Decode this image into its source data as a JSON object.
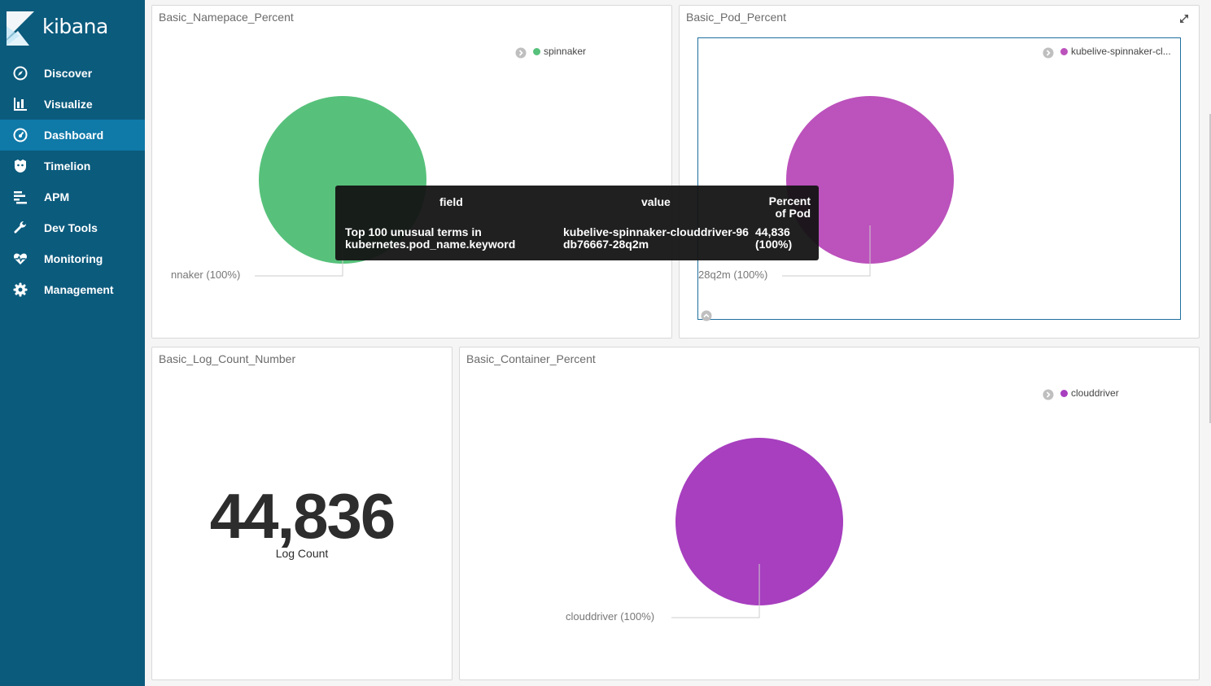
{
  "app": {
    "name": "kibana"
  },
  "nav": [
    {
      "label": "Discover",
      "icon": "compass-icon"
    },
    {
      "label": "Visualize",
      "icon": "bar-chart-icon"
    },
    {
      "label": "Dashboard",
      "icon": "dashboard-icon",
      "active": true
    },
    {
      "label": "Timelion",
      "icon": "timelion-icon"
    },
    {
      "label": "APM",
      "icon": "apm-icon"
    },
    {
      "label": "Dev Tools",
      "icon": "wrench-icon"
    },
    {
      "label": "Monitoring",
      "icon": "heartbeat-icon"
    },
    {
      "label": "Management",
      "icon": "gear-icon"
    }
  ],
  "panels": {
    "namespace": {
      "title": "Basic_Namepace_Percent",
      "legend": "spinnaker",
      "slice_label": "nnaker (100%)",
      "color": "#57c17b"
    },
    "pod": {
      "title": "Basic_Pod_Percent",
      "legend": "kubelive-spinnaker-cl...",
      "slice_label": "28q2m (100%)",
      "color": "#bc52bc"
    },
    "log_count": {
      "title": "Basic_Log_Count_Number",
      "value": "44,836",
      "label": "Log Count"
    },
    "container": {
      "title": "Basic_Container_Percent",
      "legend": "clouddriver",
      "slice_label": "clouddriver (100%)",
      "color": "#a73fbf"
    }
  },
  "tooltip": {
    "headers": {
      "field": "field",
      "value": "value",
      "percent_line1": "Percent",
      "percent_line2": "of Pod"
    },
    "row": {
      "field_line1": "Top 100 unusual terms in",
      "field_line2": "kubernetes.pod_name.keyword",
      "value_line1": "kubelive-spinnaker-clouddriver-96",
      "value_line2": "db76667-28q2m",
      "count": "44,836",
      "percent": "(100%)"
    }
  },
  "chart_data": [
    {
      "type": "pie",
      "title": "Basic_Namepace_Percent",
      "labels": [
        "spinnaker"
      ],
      "values": [
        100
      ],
      "unit": "%"
    },
    {
      "type": "pie",
      "title": "Basic_Pod_Percent",
      "labels": [
        "kubelive-spinnaker-clouddriver-96db76667-28q2m"
      ],
      "values": [
        44836
      ],
      "percent": [
        100
      ]
    },
    {
      "type": "pie",
      "title": "Basic_Container_Percent",
      "labels": [
        "clouddriver"
      ],
      "values": [
        100
      ],
      "unit": "%"
    }
  ]
}
